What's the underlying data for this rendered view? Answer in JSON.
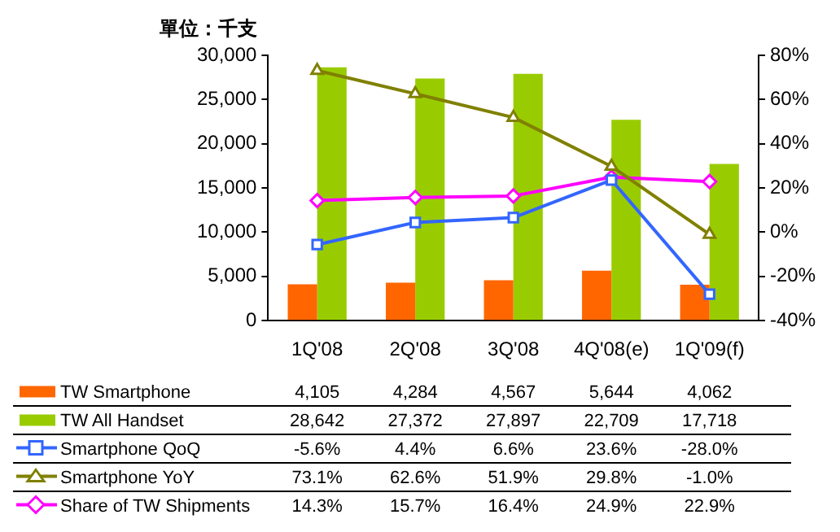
{
  "chart_data": {
    "type": "bar",
    "ylabel": "單位：千支",
    "categories": [
      "1Q'08",
      "2Q'08",
      "3Q'08",
      "4Q'08(e)",
      "1Q'09(f)"
    ],
    "ylim": [
      0,
      30000
    ],
    "yticks": [
      {
        "value": 0,
        "label": "0"
      },
      {
        "value": 5000,
        "label": "5,000"
      },
      {
        "value": 10000,
        "label": "10,000"
      },
      {
        "value": 15000,
        "label": "15,000"
      },
      {
        "value": 20000,
        "label": "20,000"
      },
      {
        "value": 25000,
        "label": "25,000"
      },
      {
        "value": 30000,
        "label": "30,000"
      }
    ],
    "y2lim": [
      -40,
      80
    ],
    "y2ticks": [
      {
        "value": -40,
        "label": "-40%"
      },
      {
        "value": -20,
        "label": "-20%"
      },
      {
        "value": 0,
        "label": "0%"
      },
      {
        "value": 20,
        "label": "20%"
      },
      {
        "value": 40,
        "label": "40%"
      },
      {
        "value": 60,
        "label": "60%"
      },
      {
        "value": 80,
        "label": "80%"
      }
    ],
    "legend": "bottom",
    "data_labels": true,
    "grid": false,
    "series": [
      {
        "name": "TW Smartphone",
        "color": "#ff6600",
        "values": [
          4105,
          4284,
          4567,
          5644,
          4062
        ],
        "value_labels": [
          "4,105",
          "4,284",
          "4,567",
          "5,644",
          "4,062"
        ]
      },
      {
        "name": "TW All Handset",
        "color": "#99cc00",
        "values": [
          28642,
          27372,
          27897,
          22709,
          17718
        ],
        "value_labels": [
          "28,642",
          "27,372",
          "27,897",
          "22,709",
          "17,718"
        ]
      },
      {
        "name": "Smartphone QoQ",
        "type": "line",
        "axis": "y2",
        "marker": "square",
        "color": "#3366ff",
        "values": [
          -5.6,
          4.4,
          6.6,
          23.6,
          -28.0
        ],
        "value_labels": [
          "-5.6%",
          "4.4%",
          "6.6%",
          "23.6%",
          "-28.0%"
        ]
      },
      {
        "name": "Smartphone YoY",
        "type": "line",
        "axis": "y2",
        "marker": "triangle",
        "color": "#808000",
        "values": [
          73.1,
          62.6,
          51.9,
          29.8,
          -1.0
        ],
        "value_labels": [
          "73.1%",
          "62.6%",
          "51.9%",
          "29.8%",
          "-1.0%"
        ]
      },
      {
        "name": "Share of TW Shipments",
        "type": "line",
        "axis": "y2",
        "marker": "diamond",
        "color": "#ff00ff",
        "values": [
          14.3,
          15.7,
          16.4,
          24.9,
          22.9
        ],
        "value_labels": [
          "14.3%",
          "15.7%",
          "16.4%",
          "24.9%",
          "22.9%"
        ]
      }
    ]
  }
}
